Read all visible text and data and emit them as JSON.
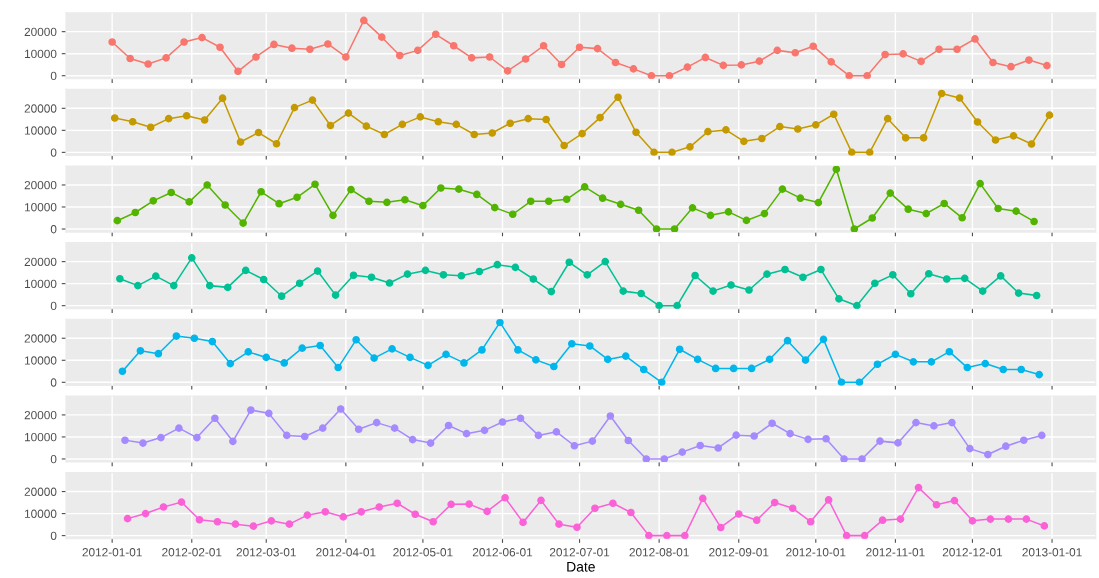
{
  "chart_data": [
    {
      "type": "line",
      "color": "#f8766d",
      "marker": "circle",
      "grid": true,
      "tick_labels": "y",
      "xlim": [
        "2011-12-14",
        "2013-01-18"
      ],
      "ylim": [
        -1400,
        28600
      ],
      "yticks": [
        0,
        10000,
        20000
      ],
      "xticks": [
        "2012-01-01",
        "2012-02-01",
        "2012-03-01",
        "2012-04-01",
        "2012-05-01",
        "2012-06-01",
        "2012-07-01",
        "2012-08-01",
        "2012-09-01",
        "2012-10-01",
        "2012-11-01",
        "2012-12-01",
        "2013-01-01"
      ],
      "x": [
        "2012-01-01",
        "2012-01-08",
        "2012-01-15",
        "2012-01-22",
        "2012-01-29",
        "2012-02-05",
        "2012-02-12",
        "2012-02-19",
        "2012-02-26",
        "2012-03-04",
        "2012-03-11",
        "2012-03-18",
        "2012-03-25",
        "2012-04-01",
        "2012-04-08",
        "2012-04-15",
        "2012-04-22",
        "2012-04-29",
        "2012-05-06",
        "2012-05-13",
        "2012-05-20",
        "2012-05-27",
        "2012-06-03",
        "2012-06-10",
        "2012-06-17",
        "2012-06-24",
        "2012-07-01",
        "2012-07-08",
        "2012-07-15",
        "2012-07-22",
        "2012-07-29",
        "2012-08-05",
        "2012-08-12",
        "2012-08-19",
        "2012-08-26",
        "2012-09-02",
        "2012-09-09",
        "2012-09-16",
        "2012-09-23",
        "2012-09-30",
        "2012-10-07",
        "2012-10-14",
        "2012-10-21",
        "2012-10-28",
        "2012-11-04",
        "2012-11-11",
        "2012-11-18",
        "2012-11-25",
        "2012-12-02",
        "2012-12-09",
        "2012-12-16",
        "2012-12-23",
        "2012-12-30"
      ],
      "values": [
        15300,
        7800,
        5300,
        8100,
        15300,
        17300,
        12900,
        2000,
        8500,
        14200,
        12500,
        12000,
        14400,
        8500,
        25100,
        17500,
        9200,
        11500,
        18800,
        13600,
        8100,
        8500,
        2200,
        7600,
        13600,
        5100,
        12900,
        12300,
        6000,
        3100,
        0,
        0,
        3900,
        8300,
        4700,
        4900,
        6600,
        11500,
        10400,
        13400,
        6300,
        0,
        0,
        9600,
        9900,
        6500,
        12000,
        12000,
        16700,
        6000,
        4100,
        7100,
        4600
      ]
    },
    {
      "type": "line",
      "color": "#c49a00",
      "marker": "circle",
      "grid": true,
      "tick_labels": "y",
      "xlim": [
        "2011-12-14",
        "2013-01-18"
      ],
      "ylim": [
        -1400,
        28600
      ],
      "yticks": [
        0,
        10000,
        20000
      ],
      "xticks": [
        "2012-01-01",
        "2012-02-01",
        "2012-03-01",
        "2012-04-01",
        "2012-05-01",
        "2012-06-01",
        "2012-07-01",
        "2012-08-01",
        "2012-09-01",
        "2012-10-01",
        "2012-11-01",
        "2012-12-01",
        "2013-01-01"
      ],
      "x": [
        "2012-01-02",
        "2012-01-09",
        "2012-01-16",
        "2012-01-23",
        "2012-01-30",
        "2012-02-06",
        "2012-02-13",
        "2012-02-20",
        "2012-02-27",
        "2012-03-05",
        "2012-03-12",
        "2012-03-19",
        "2012-03-26",
        "2012-04-02",
        "2012-04-09",
        "2012-04-16",
        "2012-04-23",
        "2012-04-30",
        "2012-05-07",
        "2012-05-14",
        "2012-05-21",
        "2012-05-28",
        "2012-06-04",
        "2012-06-11",
        "2012-06-18",
        "2012-06-25",
        "2012-07-02",
        "2012-07-09",
        "2012-07-16",
        "2012-07-23",
        "2012-07-30",
        "2012-08-06",
        "2012-08-13",
        "2012-08-20",
        "2012-08-27",
        "2012-09-03",
        "2012-09-10",
        "2012-09-17",
        "2012-09-24",
        "2012-10-01",
        "2012-10-08",
        "2012-10-15",
        "2012-10-22",
        "2012-10-29",
        "2012-11-05",
        "2012-11-12",
        "2012-11-19",
        "2012-11-26",
        "2012-12-03",
        "2012-12-10",
        "2012-12-17",
        "2012-12-24",
        "2012-12-31"
      ],
      "values": [
        15600,
        13900,
        11400,
        15300,
        16600,
        14700,
        24600,
        4700,
        9000,
        3900,
        20300,
        23700,
        12200,
        17800,
        11900,
        8100,
        12700,
        16100,
        13900,
        12700,
        8100,
        8800,
        13200,
        15300,
        14900,
        3100,
        8500,
        15800,
        25000,
        9100,
        0,
        0,
        2500,
        9400,
        10200,
        5000,
        6300,
        11700,
        10600,
        12500,
        17300,
        0,
        0,
        15300,
        6600,
        6600,
        26700,
        24700,
        13800,
        5600,
        7500,
        3800,
        16900
      ]
    },
    {
      "type": "line",
      "color": "#53b400",
      "marker": "circle",
      "grid": true,
      "tick_labels": "y",
      "xlim": [
        "2011-12-14",
        "2013-01-18"
      ],
      "ylim": [
        -1400,
        28600
      ],
      "yticks": [
        0,
        10000,
        20000
      ],
      "xticks": [
        "2012-01-01",
        "2012-02-01",
        "2012-03-01",
        "2012-04-01",
        "2012-05-01",
        "2012-06-01",
        "2012-07-01",
        "2012-08-01",
        "2012-09-01",
        "2012-10-01",
        "2012-11-01",
        "2012-12-01",
        "2013-01-01"
      ],
      "x": [
        "2012-01-03",
        "2012-01-10",
        "2012-01-17",
        "2012-01-24",
        "2012-01-31",
        "2012-02-07",
        "2012-02-14",
        "2012-02-21",
        "2012-02-28",
        "2012-03-06",
        "2012-03-13",
        "2012-03-20",
        "2012-03-27",
        "2012-04-03",
        "2012-04-10",
        "2012-04-17",
        "2012-04-24",
        "2012-05-01",
        "2012-05-08",
        "2012-05-15",
        "2012-05-22",
        "2012-05-29",
        "2012-06-05",
        "2012-06-12",
        "2012-06-19",
        "2012-06-26",
        "2012-07-03",
        "2012-07-10",
        "2012-07-17",
        "2012-07-24",
        "2012-07-31",
        "2012-08-07",
        "2012-08-14",
        "2012-08-21",
        "2012-08-28",
        "2012-09-04",
        "2012-09-11",
        "2012-09-18",
        "2012-09-25",
        "2012-10-02",
        "2012-10-09",
        "2012-10-16",
        "2012-10-23",
        "2012-10-30",
        "2012-11-06",
        "2012-11-13",
        "2012-11-20",
        "2012-11-27",
        "2012-12-04",
        "2012-12-11",
        "2012-12-18",
        "2012-12-25"
      ],
      "values": [
        3800,
        7500,
        12800,
        16600,
        12300,
        20000,
        10900,
        2700,
        16900,
        11500,
        14400,
        20300,
        6200,
        17900,
        12600,
        12100,
        13300,
        10600,
        18600,
        18100,
        15700,
        9700,
        6700,
        12600,
        12600,
        13500,
        19100,
        14000,
        11200,
        8500,
        0,
        0,
        9600,
        6200,
        7800,
        3900,
        7000,
        18100,
        14000,
        12000,
        27100,
        0,
        5000,
        16300,
        9000,
        7000,
        11600,
        5100,
        20600,
        9300,
        8100,
        3400
      ]
    },
    {
      "type": "line",
      "color": "#00c094",
      "marker": "circle",
      "grid": true,
      "tick_labels": "y",
      "xlim": [
        "2011-12-14",
        "2013-01-18"
      ],
      "ylim": [
        -1400,
        28600
      ],
      "yticks": [
        0,
        10000,
        20000
      ],
      "xticks": [
        "2012-01-01",
        "2012-02-01",
        "2012-03-01",
        "2012-04-01",
        "2012-05-01",
        "2012-06-01",
        "2012-07-01",
        "2012-08-01",
        "2012-09-01",
        "2012-10-01",
        "2012-11-01",
        "2012-12-01",
        "2013-01-01"
      ],
      "x": [
        "2012-01-04",
        "2012-01-11",
        "2012-01-18",
        "2012-01-25",
        "2012-02-01",
        "2012-02-08",
        "2012-02-15",
        "2012-02-22",
        "2012-02-29",
        "2012-03-07",
        "2012-03-14",
        "2012-03-21",
        "2012-03-28",
        "2012-04-04",
        "2012-04-11",
        "2012-04-18",
        "2012-04-25",
        "2012-05-02",
        "2012-05-09",
        "2012-05-16",
        "2012-05-23",
        "2012-05-30",
        "2012-06-06",
        "2012-06-13",
        "2012-06-20",
        "2012-06-27",
        "2012-07-04",
        "2012-07-11",
        "2012-07-18",
        "2012-07-25",
        "2012-08-01",
        "2012-08-08",
        "2012-08-15",
        "2012-08-22",
        "2012-08-29",
        "2012-09-05",
        "2012-09-12",
        "2012-09-19",
        "2012-09-26",
        "2012-10-03",
        "2012-10-10",
        "2012-10-17",
        "2012-10-24",
        "2012-10-31",
        "2012-11-07",
        "2012-11-14",
        "2012-11-21",
        "2012-11-28",
        "2012-12-05",
        "2012-12-12",
        "2012-12-19",
        "2012-12-26"
      ],
      "values": [
        12200,
        9100,
        13400,
        9100,
        21700,
        9100,
        8300,
        16000,
        11900,
        4300,
        10200,
        15700,
        4800,
        13800,
        12900,
        10300,
        14300,
        16000,
        14000,
        13600,
        15500,
        18600,
        17400,
        12100,
        6400,
        19700,
        14000,
        20000,
        6600,
        5500,
        0,
        0,
        13700,
        6600,
        9400,
        7100,
        14300,
        16400,
        12900,
        16400,
        3100,
        0,
        10200,
        14000,
        5400,
        14500,
        12100,
        12400,
        6600,
        13500,
        5700,
        4600
      ]
    },
    {
      "type": "line",
      "color": "#00b6eb",
      "marker": "circle",
      "grid": true,
      "tick_labels": "y",
      "xlim": [
        "2011-12-14",
        "2013-01-18"
      ],
      "ylim": [
        -1400,
        28600
      ],
      "yticks": [
        0,
        10000,
        20000
      ],
      "xticks": [
        "2012-01-01",
        "2012-02-01",
        "2012-03-01",
        "2012-04-01",
        "2012-05-01",
        "2012-06-01",
        "2012-07-01",
        "2012-08-01",
        "2012-09-01",
        "2012-10-01",
        "2012-11-01",
        "2012-12-01",
        "2013-01-01"
      ],
      "x": [
        "2012-01-05",
        "2012-01-12",
        "2012-01-19",
        "2012-01-26",
        "2012-02-02",
        "2012-02-09",
        "2012-02-16",
        "2012-02-23",
        "2012-03-01",
        "2012-03-08",
        "2012-03-15",
        "2012-03-22",
        "2012-03-29",
        "2012-04-05",
        "2012-04-12",
        "2012-04-19",
        "2012-04-26",
        "2012-05-03",
        "2012-05-10",
        "2012-05-17",
        "2012-05-24",
        "2012-05-31",
        "2012-06-07",
        "2012-06-14",
        "2012-06-21",
        "2012-06-28",
        "2012-07-05",
        "2012-07-12",
        "2012-07-19",
        "2012-07-26",
        "2012-08-02",
        "2012-08-09",
        "2012-08-16",
        "2012-08-23",
        "2012-08-30",
        "2012-09-06",
        "2012-09-13",
        "2012-09-20",
        "2012-09-27",
        "2012-10-04",
        "2012-10-11",
        "2012-10-18",
        "2012-10-25",
        "2012-11-01",
        "2012-11-08",
        "2012-11-15",
        "2012-11-22",
        "2012-11-29",
        "2012-12-06",
        "2012-12-13",
        "2012-12-20",
        "2012-12-27"
      ],
      "values": [
        5000,
        14300,
        13000,
        21000,
        20000,
        18500,
        8500,
        13800,
        11300,
        8800,
        15500,
        16700,
        6700,
        19300,
        11000,
        15200,
        11300,
        7700,
        12700,
        8800,
        14700,
        27200,
        14700,
        10200,
        7200,
        17500,
        16500,
        10400,
        11900,
        5800,
        0,
        15000,
        10400,
        6300,
        6300,
        6300,
        10400,
        18900,
        10100,
        19500,
        0,
        0,
        8200,
        12700,
        9300,
        9300,
        13900,
        6700,
        8500,
        5800,
        5800,
        3500
      ]
    },
    {
      "type": "line",
      "color": "#a58aff",
      "marker": "circle",
      "grid": true,
      "tick_labels": "y",
      "xlim": [
        "2011-12-14",
        "2013-01-18"
      ],
      "ylim": [
        -1400,
        28600
      ],
      "yticks": [
        0,
        10000,
        20000
      ],
      "xticks": [
        "2012-01-01",
        "2012-02-01",
        "2012-03-01",
        "2012-04-01",
        "2012-05-01",
        "2012-06-01",
        "2012-07-01",
        "2012-08-01",
        "2012-09-01",
        "2012-10-01",
        "2012-11-01",
        "2012-12-01",
        "2013-01-01"
      ],
      "x": [
        "2012-01-06",
        "2012-01-13",
        "2012-01-20",
        "2012-01-27",
        "2012-02-03",
        "2012-02-10",
        "2012-02-17",
        "2012-02-24",
        "2012-03-02",
        "2012-03-09",
        "2012-03-16",
        "2012-03-23",
        "2012-03-30",
        "2012-04-06",
        "2012-04-13",
        "2012-04-20",
        "2012-04-27",
        "2012-05-04",
        "2012-05-11",
        "2012-05-18",
        "2012-05-25",
        "2012-06-01",
        "2012-06-08",
        "2012-06-15",
        "2012-06-22",
        "2012-06-29",
        "2012-07-06",
        "2012-07-13",
        "2012-07-20",
        "2012-07-27",
        "2012-08-03",
        "2012-08-10",
        "2012-08-17",
        "2012-08-24",
        "2012-08-31",
        "2012-09-07",
        "2012-09-14",
        "2012-09-21",
        "2012-09-28",
        "2012-10-05",
        "2012-10-12",
        "2012-10-19",
        "2012-10-26",
        "2012-11-02",
        "2012-11-09",
        "2012-11-16",
        "2012-11-23",
        "2012-11-30",
        "2012-12-07",
        "2012-12-14",
        "2012-12-21",
        "2012-12-28"
      ],
      "values": [
        8500,
        7200,
        9700,
        14000,
        9700,
        18500,
        8000,
        22200,
        20700,
        10700,
        10200,
        14000,
        22700,
        13500,
        16500,
        14000,
        8800,
        7200,
        15200,
        11500,
        13000,
        16800,
        18500,
        10700,
        12300,
        6000,
        8100,
        19500,
        8400,
        0,
        0,
        3100,
        6100,
        5000,
        10800,
        10400,
        16200,
        11500,
        8900,
        9200,
        0,
        0,
        8100,
        7300,
        16500,
        15000,
        16500,
        4700,
        2000,
        5800,
        8500,
        10700
      ]
    },
    {
      "type": "line",
      "color": "#fb61d7",
      "marker": "circle",
      "grid": true,
      "xlabel": "Date",
      "xlim": [
        "2011-12-14",
        "2013-01-18"
      ],
      "ylim": [
        -1400,
        28600
      ],
      "yticks": [
        0,
        10000,
        20000
      ],
      "xticks": [
        "2012-01-01",
        "2012-02-01",
        "2012-03-01",
        "2012-04-01",
        "2012-05-01",
        "2012-06-01",
        "2012-07-01",
        "2012-08-01",
        "2012-09-01",
        "2012-10-01",
        "2012-11-01",
        "2012-12-01",
        "2013-01-01"
      ],
      "x": [
        "2012-01-07",
        "2012-01-14",
        "2012-01-21",
        "2012-01-28",
        "2012-02-04",
        "2012-02-11",
        "2012-02-18",
        "2012-02-25",
        "2012-03-03",
        "2012-03-10",
        "2012-03-17",
        "2012-03-24",
        "2012-03-31",
        "2012-04-07",
        "2012-04-14",
        "2012-04-21",
        "2012-04-28",
        "2012-05-05",
        "2012-05-12",
        "2012-05-19",
        "2012-05-26",
        "2012-06-02",
        "2012-06-09",
        "2012-06-16",
        "2012-06-23",
        "2012-06-30",
        "2012-07-07",
        "2012-07-14",
        "2012-07-21",
        "2012-07-28",
        "2012-08-04",
        "2012-08-11",
        "2012-08-18",
        "2012-08-25",
        "2012-09-01",
        "2012-09-08",
        "2012-09-15",
        "2012-09-22",
        "2012-09-29",
        "2012-10-06",
        "2012-10-13",
        "2012-10-20",
        "2012-10-27",
        "2012-11-03",
        "2012-11-10",
        "2012-11-17",
        "2012-11-24",
        "2012-12-01",
        "2012-12-08",
        "2012-12-15",
        "2012-12-22",
        "2012-12-29"
      ],
      "values": [
        7700,
        10000,
        13000,
        15200,
        7200,
        6300,
        5200,
        4300,
        6700,
        5200,
        9300,
        10800,
        8500,
        10800,
        13000,
        14700,
        9700,
        6300,
        14200,
        14300,
        11000,
        17200,
        6000,
        16000,
        5200,
        3800,
        12400,
        14700,
        10500,
        0,
        0,
        0,
        16900,
        3700,
        9800,
        7000,
        15000,
        12400,
        6300,
        16200,
        0,
        0,
        7000,
        7500,
        21800,
        14000,
        15900,
        6700,
        7500,
        7500,
        7500,
        4400
      ]
    }
  ]
}
